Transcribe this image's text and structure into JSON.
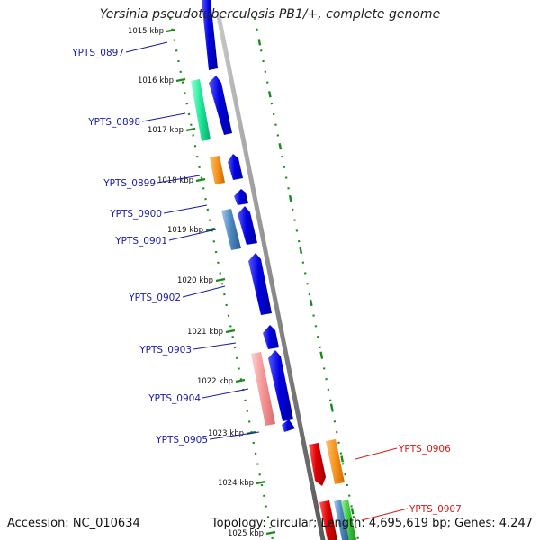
{
  "title": "Yersinia pseudotuberculosis PB1/+, complete genome",
  "accession": "Accession: NC_010634",
  "topology": "Topology: circular; Length: 4,695,619 bp; Genes: 4,247",
  "ticks": [
    "1015 kbp",
    "1016 kbp",
    "1017 kbp",
    "1018 kbp",
    "1019 kbp",
    "1020 kbp",
    "1021 kbp",
    "1022 kbp",
    "1023 kbp",
    "1024 kbp",
    "1025 kbp"
  ],
  "genes": [
    {
      "id": "YPTS_0897",
      "color": "#1a1aa8"
    },
    {
      "id": "YPTS_0898",
      "color": "#1a1aa8"
    },
    {
      "id": "YPTS_0899",
      "color": "#1a1aa8"
    },
    {
      "id": "YPTS_0900",
      "color": "#1a1aa8"
    },
    {
      "id": "YPTS_0901",
      "color": "#1a1aa8"
    },
    {
      "id": "YPTS_0902",
      "color": "#1a1aa8"
    },
    {
      "id": "YPTS_0903",
      "color": "#1a1aa8"
    },
    {
      "id": "YPTS_0904",
      "color": "#1a1aa8"
    },
    {
      "id": "YPTS_0905",
      "color": "#1a1aa8"
    },
    {
      "id": "YPTS_0906",
      "color": "#d81818"
    },
    {
      "id": "YPTS_0907",
      "color": "#d81818"
    }
  ],
  "colors": {
    "forward_cds": "#0b0bdc",
    "reverse_cds": "#e00000",
    "backbone": "#8c8c8c",
    "tick_green": "#1d8a1d",
    "orange": "#f7931e",
    "mint": "#1ee89a",
    "steelblue": "#4a86c0",
    "salmon": "#f49494",
    "green": "#3cc83c"
  }
}
